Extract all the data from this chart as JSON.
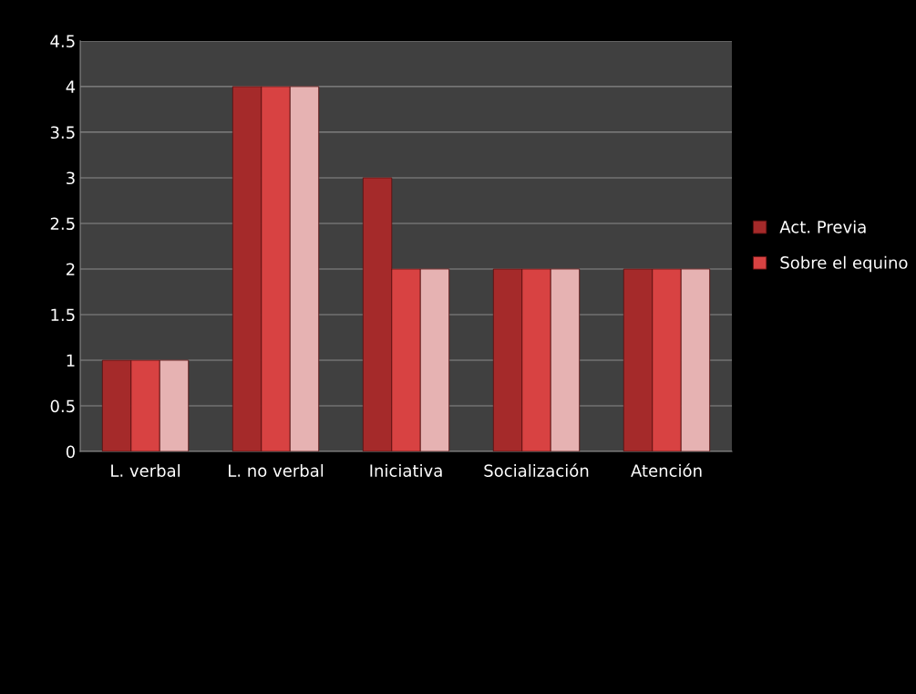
{
  "chart_data": {
    "type": "bar",
    "categories": [
      "L. verbal",
      "L. no verbal",
      "Iniciativa",
      "Socialización",
      "Atención"
    ],
    "series": [
      {
        "name": "Act. Previa",
        "color": "#a52a2a",
        "values": [
          1,
          4,
          3,
          2,
          2
        ]
      },
      {
        "name": "Sobre el equino",
        "color": "#d84242",
        "values": [
          1,
          4,
          2,
          2,
          2
        ]
      },
      {
        "color": "#e6b2b2",
        "values": [
          1,
          4,
          2,
          2,
          2
        ]
      }
    ],
    "ylim": [
      0,
      4.5
    ],
    "yticks": [
      0,
      0.5,
      1,
      1.5,
      2,
      2.5,
      3,
      3.5,
      4,
      4.5
    ],
    "grid": "y",
    "legend": "right"
  }
}
